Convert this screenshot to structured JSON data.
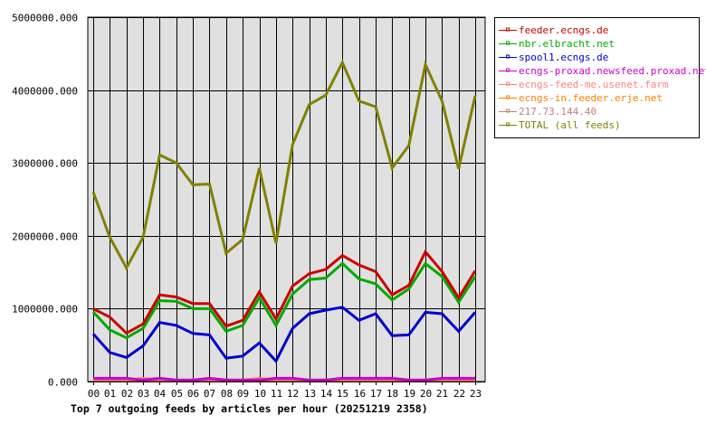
{
  "chart_data": {
    "type": "line",
    "title": "Top 7 outgoing feeds by articles per hour (20251219 2358)",
    "xlabel": "",
    "ylabel": "",
    "ylim": [
      0,
      5000000
    ],
    "yticks": [
      0,
      1000000,
      2000000,
      3000000,
      4000000,
      5000000
    ],
    "ytick_labels": [
      "0.000",
      "1000000.000",
      "2000000.000",
      "3000000.000",
      "4000000.000",
      "5000000.000"
    ],
    "categories": [
      "00",
      "01",
      "02",
      "03",
      "04",
      "05",
      "06",
      "07",
      "08",
      "09",
      "10",
      "11",
      "12",
      "13",
      "14",
      "15",
      "16",
      "17",
      "18",
      "19",
      "20",
      "21",
      "22",
      "23"
    ],
    "grid": true,
    "legend_position": "top-right",
    "plot_background": "#e0e0e0",
    "series": [
      {
        "name": "feeder.ecngs.de",
        "color": "#cc0000",
        "values": [
          1000000,
          885000,
          665000,
          790000,
          1190000,
          1160000,
          1070000,
          1070000,
          760000,
          840000,
          1230000,
          860000,
          1310000,
          1480000,
          1540000,
          1730000,
          1600000,
          1510000,
          1190000,
          1320000,
          1780000,
          1510000,
          1150000,
          1520000
        ]
      },
      {
        "name": "nbr.elbracht.net",
        "color": "#00aa00",
        "values": [
          955000,
          710000,
          600000,
          730000,
          1110000,
          1100000,
          1000000,
          1000000,
          690000,
          770000,
          1150000,
          770000,
          1200000,
          1400000,
          1420000,
          1620000,
          1410000,
          1340000,
          1120000,
          1270000,
          1620000,
          1440000,
          1090000,
          1440000
        ]
      },
      {
        "name": "spool1.ecngs.de",
        "color": "#0000cc",
        "values": [
          655000,
          400000,
          330000,
          490000,
          810000,
          770000,
          660000,
          640000,
          320000,
          350000,
          530000,
          280000,
          730000,
          930000,
          980000,
          1020000,
          840000,
          930000,
          630000,
          640000,
          950000,
          930000,
          690000,
          950000
        ]
      },
      {
        "name": "ecngs-proxad.newsfeed.proxad.net",
        "color": "#cc00cc",
        "values": [
          45000,
          45000,
          45000,
          20000,
          45000,
          20000,
          20000,
          45000,
          20000,
          20000,
          20000,
          45000,
          45000,
          20000,
          20000,
          45000,
          45000,
          45000,
          45000,
          20000,
          20000,
          45000,
          45000,
          45000
        ]
      },
      {
        "name": "ecngs-feed-me.usenet.farm",
        "color": "#ff8080",
        "values": [
          20000,
          20000,
          20000,
          45000,
          20000,
          20000,
          20000,
          20000,
          20000,
          20000,
          45000,
          20000,
          20000,
          20000,
          20000,
          20000,
          20000,
          20000,
          20000,
          20000,
          20000,
          20000,
          20000,
          20000
        ]
      },
      {
        "name": "ecngs-in.feeder.erje.net",
        "color": "#ff8000",
        "values": [
          10000,
          10000,
          10000,
          10000,
          10000,
          10000,
          10000,
          10000,
          10000,
          10000,
          10000,
          10000,
          10000,
          10000,
          10000,
          10000,
          10000,
          10000,
          10000,
          10000,
          10000,
          10000,
          10000,
          10000
        ]
      },
      {
        "name": "217.73.144.40",
        "color": "#c08080",
        "values": [
          20000,
          20000,
          20000,
          20000,
          20000,
          20000,
          20000,
          20000,
          20000,
          20000,
          20000,
          20000,
          20000,
          20000,
          20000,
          20000,
          20000,
          20000,
          20000,
          20000,
          20000,
          20000,
          20000,
          20000
        ]
      },
      {
        "name": "TOTAL (all feeds)",
        "color": "#808000",
        "values": [
          2600000,
          1980000,
          1560000,
          1980000,
          3110000,
          3000000,
          2700000,
          2710000,
          1760000,
          1950000,
          2930000,
          1900000,
          3250000,
          3800000,
          3930000,
          4380000,
          3850000,
          3770000,
          2930000,
          3240000,
          4350000,
          3850000,
          2920000,
          3920000
        ]
      }
    ]
  }
}
